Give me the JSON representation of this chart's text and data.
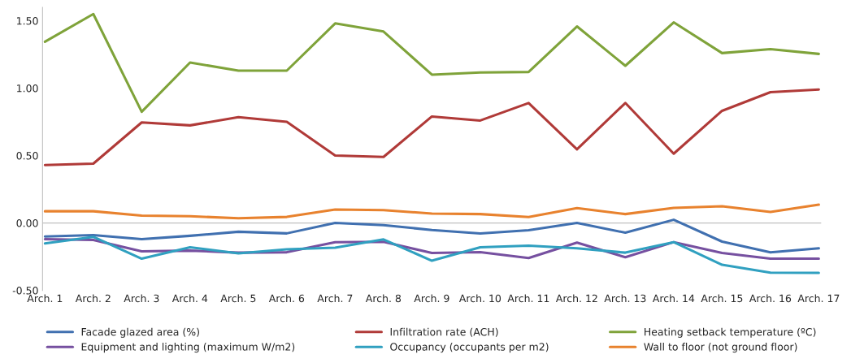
{
  "chart_data": {
    "type": "line",
    "categories": [
      "Arch. 1",
      "Arch. 2",
      "Arch. 3",
      "Arch. 4",
      "Arch. 5",
      "Arch. 6",
      "Arch. 7",
      "Arch. 8",
      "Arch. 9",
      "Arch. 10",
      "Arch. 11",
      "Arch. 12",
      "Arch. 13",
      "Arch. 14",
      "Arch. 15",
      "Arch. 16",
      "Arch. 17"
    ],
    "series": [
      {
        "name": "Facade glazed area (%)",
        "color": "#4070b0",
        "values": [
          -0.1,
          -0.09,
          -0.12,
          -0.095,
          -0.065,
          -0.077,
          0.0,
          -0.016,
          -0.052,
          -0.078,
          -0.054,
          0.0,
          -0.072,
          0.024,
          -0.138,
          -0.218,
          -0.188
        ]
      },
      {
        "name": "Infiltration rate (ACH)",
        "color": "#b03a38",
        "values": [
          0.43,
          0.44,
          0.746,
          0.724,
          0.785,
          0.75,
          0.5,
          0.49,
          0.79,
          0.76,
          0.89,
          0.546,
          0.89,
          0.514,
          0.832,
          0.97,
          0.99
        ]
      },
      {
        "name": "Heating setback temperature (ºC)",
        "color": "#7fa33a",
        "values": [
          1.344,
          1.55,
          0.825,
          1.19,
          1.13,
          1.13,
          1.48,
          1.42,
          1.1,
          1.116,
          1.12,
          1.458,
          1.166,
          1.488,
          1.26,
          1.29,
          1.254
        ]
      },
      {
        "name": "Equipment and lighting (maximum W/m2)",
        "color": "#7650a0",
        "values": [
          -0.12,
          -0.126,
          -0.21,
          -0.205,
          -0.22,
          -0.217,
          -0.142,
          -0.14,
          -0.222,
          -0.216,
          -0.26,
          -0.146,
          -0.254,
          -0.142,
          -0.222,
          -0.264,
          -0.264
        ]
      },
      {
        "name": "Occupancy (occupants per m2)",
        "color": "#30a0c0",
        "values": [
          -0.152,
          -0.103,
          -0.265,
          -0.18,
          -0.225,
          -0.195,
          -0.183,
          -0.122,
          -0.28,
          -0.18,
          -0.168,
          -0.188,
          -0.22,
          -0.142,
          -0.31,
          -0.368,
          -0.37
        ]
      },
      {
        "name": "Wall to floor (not ground floor)",
        "color": "#e8822e",
        "values": [
          0.087,
          0.087,
          0.055,
          0.05,
          0.035,
          0.045,
          0.1,
          0.095,
          0.07,
          0.066,
          0.044,
          0.11,
          0.066,
          0.112,
          0.124,
          0.082,
          0.136
        ]
      }
    ],
    "ylim": [
      -0.5,
      1.6
    ],
    "yticks": [
      {
        "value": -0.5,
        "label": "-0.50"
      },
      {
        "value": 0,
        "label": "0.00"
      },
      {
        "value": 0.5,
        "label": "0.50"
      },
      {
        "value": 1.0,
        "label": "1.00"
      },
      {
        "value": 1.5,
        "label": "1.50"
      }
    ],
    "ref_lines": [
      {
        "axis": "y",
        "value": 0,
        "color": "#bfbfbf"
      }
    ],
    "grid": false,
    "legend": "bottom",
    "marker": "none",
    "line_style": "solid"
  }
}
